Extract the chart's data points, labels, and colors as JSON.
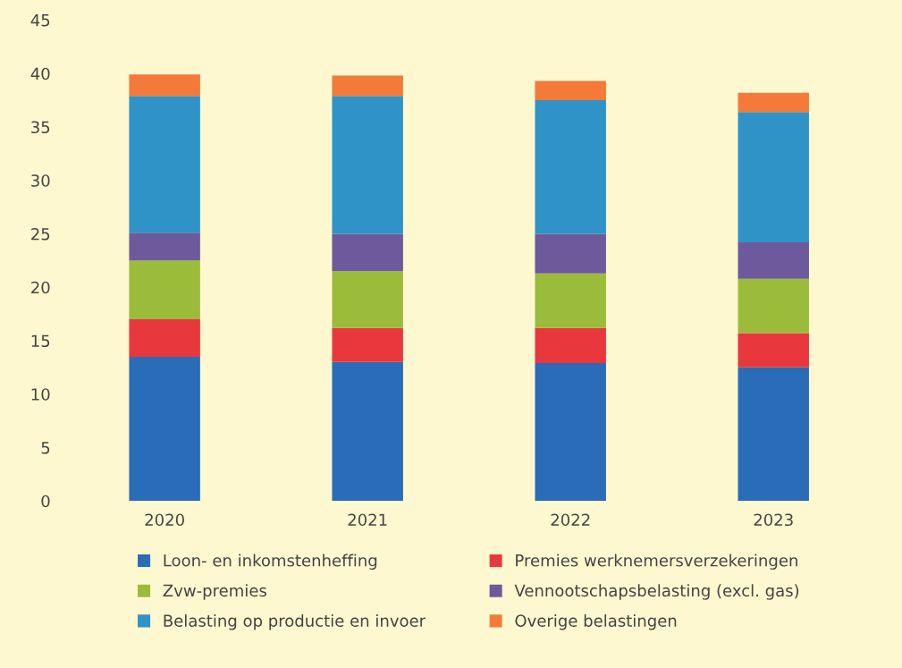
{
  "chart_data": {
    "type": "bar",
    "stacked": true,
    "categories": [
      "2020",
      "2021",
      "2022",
      "2023"
    ],
    "series": [
      {
        "name": "Loon- en inkomstenheffing",
        "color": "#2a6cb8",
        "values": [
          13.5,
          13.0,
          12.9,
          12.5
        ]
      },
      {
        "name": "Premies werknemersverzekeringen",
        "color": "#e8383d",
        "values": [
          3.5,
          3.2,
          3.3,
          3.2
        ]
      },
      {
        "name": "Zvw-premies",
        "color": "#9bbb3b",
        "values": [
          5.5,
          5.3,
          5.1,
          5.1
        ]
      },
      {
        "name": "Vennootschapsbelasting (excl. gas)",
        "color": "#6c5a9c",
        "values": [
          2.6,
          3.5,
          3.7,
          3.4
        ]
      },
      {
        "name": "Belasting op productie en invoer",
        "color": "#2f93c7",
        "values": [
          12.8,
          12.9,
          12.5,
          12.2
        ]
      },
      {
        "name": "Overige belastingen",
        "color": "#f47a3a",
        "values": [
          2.0,
          1.9,
          1.8,
          1.8
        ]
      }
    ],
    "ylim": [
      0,
      45
    ],
    "yticks": [
      0,
      5,
      10,
      15,
      20,
      25,
      30,
      35,
      40,
      45
    ],
    "grid": false,
    "legend": "bottom"
  }
}
